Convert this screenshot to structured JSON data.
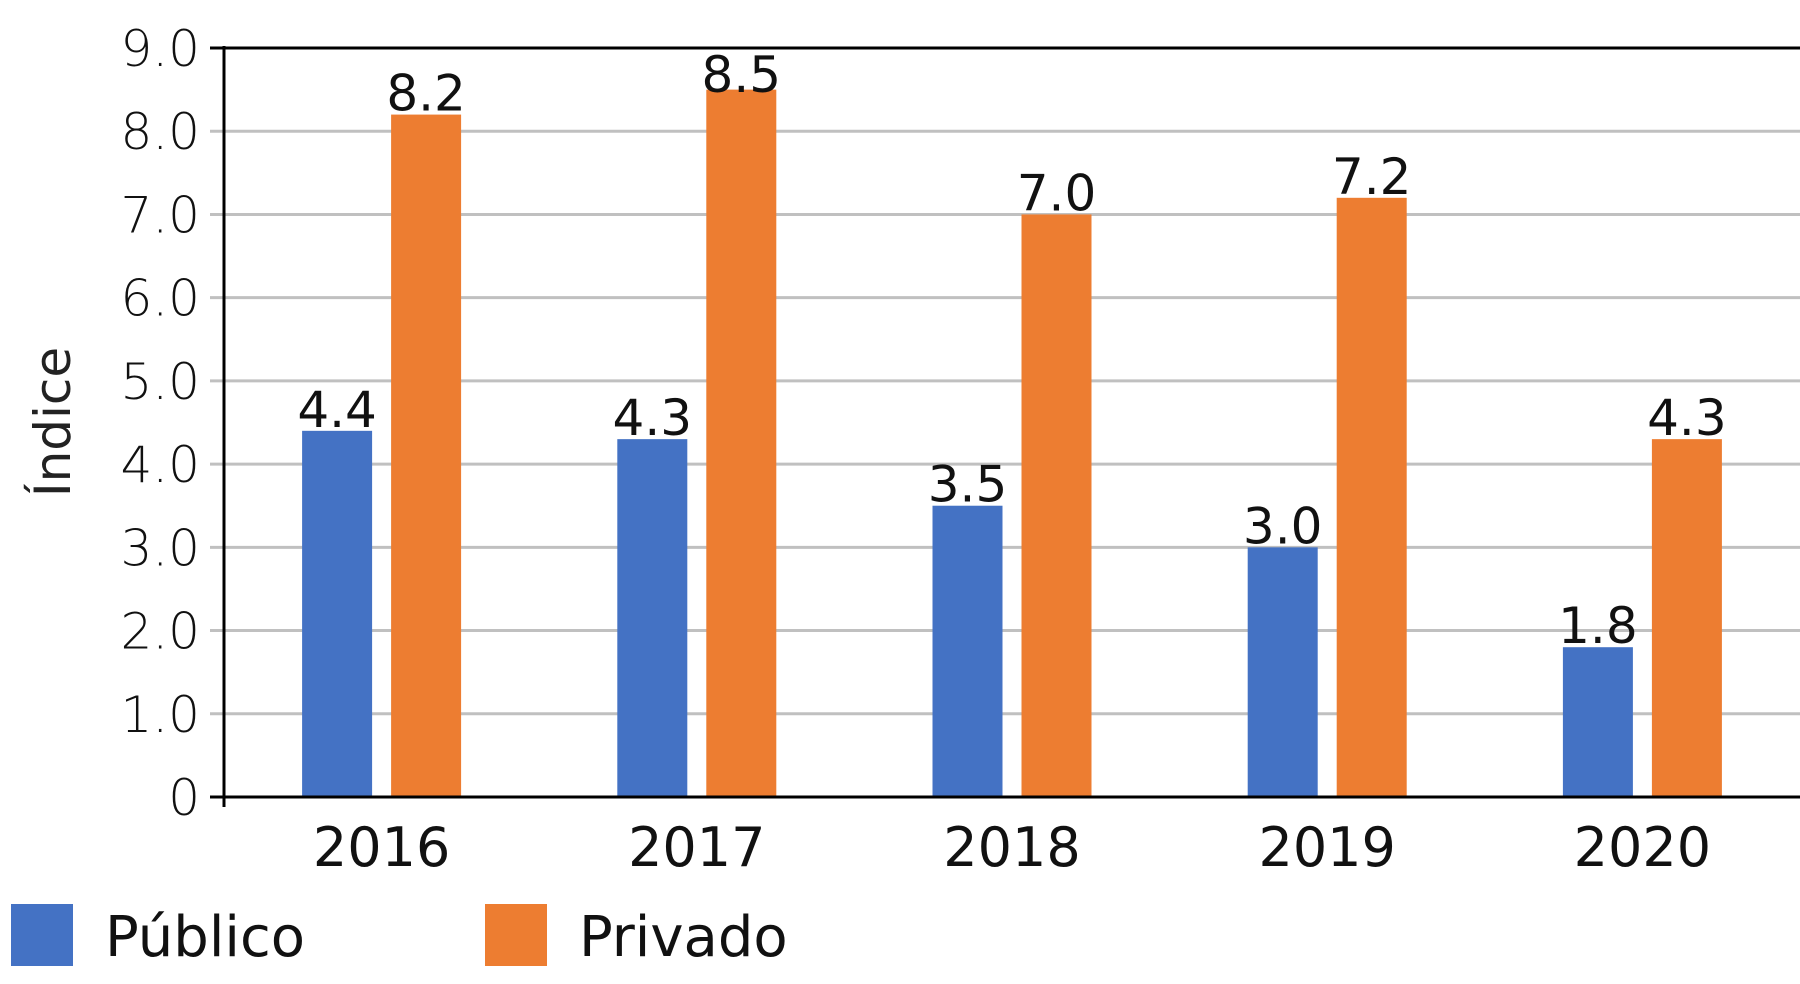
{
  "chart_data": {
    "type": "bar",
    "title": "",
    "xlabel": "",
    "ylabel": "Índice",
    "ylim": [
      0,
      9
    ],
    "yticks": [
      "0",
      "1.0",
      "2.0",
      "3.0",
      "4.0",
      "5.0",
      "6.0",
      "7.0",
      "8.0",
      "9.0"
    ],
    "grid": true,
    "legend_position": "bottom-left",
    "categories": [
      "2016",
      "2017",
      "2018",
      "2019",
      "2020"
    ],
    "series": [
      {
        "name": "Público",
        "color": "#4472C4",
        "values": [
          4.4,
          4.3,
          3.5,
          3.0,
          1.8
        ],
        "labels": [
          "4.4",
          "4.3",
          "3.5",
          "3.0",
          "1.8"
        ]
      },
      {
        "name": "Privado",
        "color": "#ED7D31",
        "values": [
          8.2,
          8.5,
          7.0,
          7.2,
          4.3
        ],
        "labels": [
          "8.2",
          "8.5",
          "7.0",
          "7.2",
          "4.3"
        ]
      }
    ]
  }
}
